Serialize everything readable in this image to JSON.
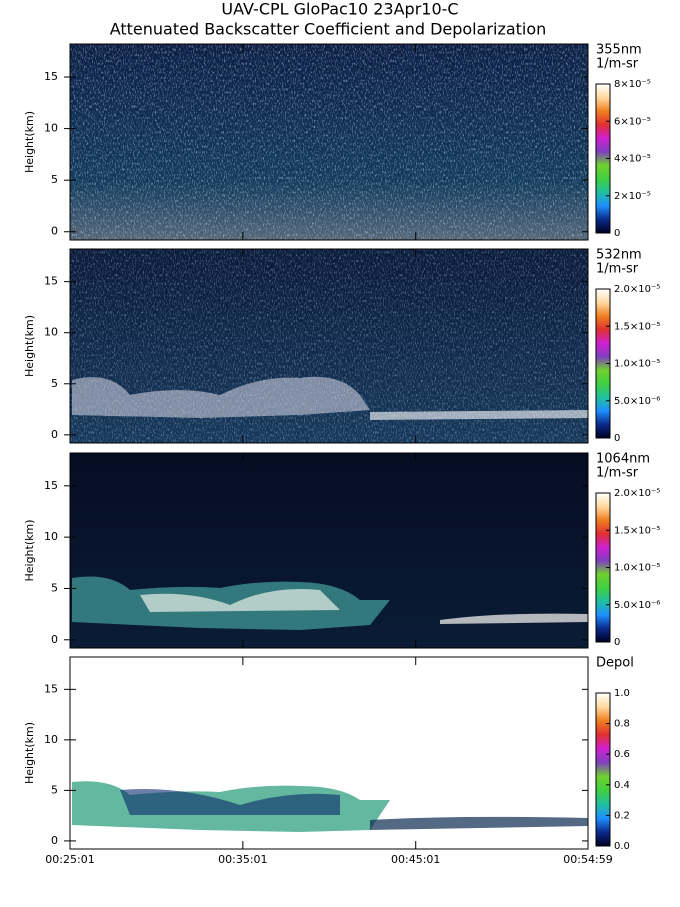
{
  "chart_data": [
    {
      "type": "heatmap",
      "title": "UAV-CPL GloPac10 23Apr10-C",
      "subtitle": "Attenuated Backscatter Coefficient and Depolarization",
      "label": [
        "355nm",
        "1/m-sr"
      ],
      "ylabel": "Height(km)",
      "ylim": [
        -0.8,
        18.2
      ],
      "yticks": [
        0,
        5,
        10,
        15
      ],
      "clim": [
        0,
        8e-05
      ],
      "cticks": [
        0,
        {
          "value": 2e-05,
          "label": "2×10⁻⁵"
        },
        {
          "value": 4e-05,
          "label": "4×10⁻⁵"
        },
        {
          "value": 6e-05,
          "label": "6×10⁻⁵"
        },
        {
          "value": 8e-05,
          "label": "8×10⁻⁵"
        }
      ]
    },
    {
      "type": "heatmap",
      "label": [
        "532nm",
        "1/m-sr"
      ],
      "ylabel": "Height(km)",
      "ylim": [
        -0.8,
        18.2
      ],
      "yticks": [
        0,
        5,
        10,
        15
      ],
      "clim": [
        0,
        2e-05
      ],
      "cticks": [
        0,
        {
          "value": 5e-06,
          "label": "5.0×10⁻⁶"
        },
        {
          "value": 1e-05,
          "label": "1.0×10⁻⁵"
        },
        {
          "value": 1.5e-05,
          "label": "1.5×10⁻⁵"
        },
        {
          "value": 2e-05,
          "label": "2.0×10⁻⁵"
        }
      ]
    },
    {
      "type": "heatmap",
      "label": [
        "1064nm",
        "1/m-sr"
      ],
      "ylabel": "Height(km)",
      "ylim": [
        -0.8,
        18.2
      ],
      "yticks": [
        0,
        5,
        10,
        15
      ],
      "clim": [
        0,
        2e-05
      ],
      "cticks": [
        0,
        {
          "value": 5e-06,
          "label": "5.0×10⁻⁶"
        },
        {
          "value": 1e-05,
          "label": "1.0×10⁻⁵"
        },
        {
          "value": 1.5e-05,
          "label": "1.5×10⁻⁵"
        },
        {
          "value": 2e-05,
          "label": "2.0×10⁻⁵"
        }
      ]
    },
    {
      "type": "heatmap",
      "label": [
        "Depol"
      ],
      "ylabel": "Height(km)",
      "ylim": [
        -0.8,
        18.2
      ],
      "yticks": [
        0,
        5,
        10,
        15
      ],
      "clim": [
        0,
        1
      ],
      "cticks": [
        {
          "value": 0,
          "label": "0.0"
        },
        0.2,
        0.4,
        0.6,
        0.8,
        {
          "value": 1,
          "label": "1.0"
        }
      ],
      "xlim": [
        "00:25:01",
        "00:54:59"
      ],
      "xticks": [
        "00:25:01",
        "00:35:01",
        "00:45:01",
        "00:54:59"
      ],
      "colormap": [
        "#000022",
        "#0a2a8a",
        "#1e90ff",
        "#20c0a0",
        "#40d040",
        "#70d030",
        "#8040c0",
        "#d020d0",
        "#e03030",
        "#f08020",
        "#ffd9a0",
        "#ffffff"
      ]
    }
  ]
}
